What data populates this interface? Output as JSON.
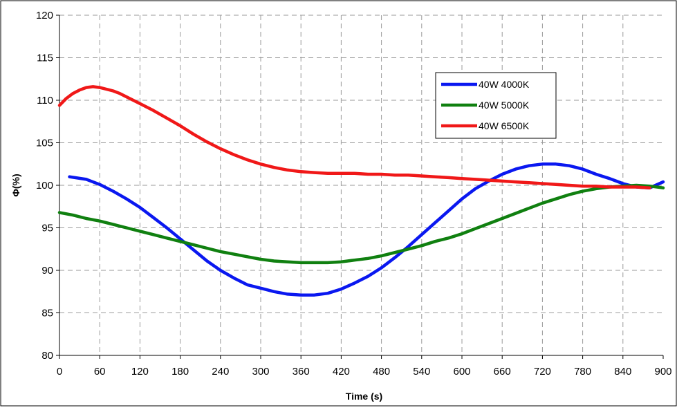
{
  "chart_data": {
    "type": "line",
    "title": "",
    "xlabel": "Time (s)",
    "ylabel": "Φ(%)",
    "xlim": [
      0,
      900
    ],
    "ylim": [
      80,
      120
    ],
    "x_ticks": [
      0,
      60,
      120,
      180,
      240,
      300,
      360,
      420,
      480,
      540,
      600,
      660,
      720,
      780,
      840,
      900
    ],
    "y_ticks": [
      80,
      85,
      90,
      95,
      100,
      105,
      110,
      115,
      120
    ],
    "grid": true,
    "legend_position": "top-right",
    "series": [
      {
        "name": "40W 4000K",
        "color": "#0a18f0",
        "x": [
          15,
          40,
          60,
          80,
          100,
          120,
          140,
          160,
          180,
          200,
          220,
          240,
          260,
          280,
          300,
          320,
          340,
          360,
          380,
          400,
          420,
          440,
          460,
          480,
          500,
          520,
          540,
          560,
          580,
          600,
          620,
          640,
          660,
          680,
          700,
          720,
          740,
          760,
          780,
          800,
          820,
          840,
          860,
          880,
          900
        ],
        "y": [
          101.0,
          100.7,
          100.1,
          99.3,
          98.4,
          97.4,
          96.2,
          95.0,
          93.7,
          92.4,
          91.1,
          90.0,
          89.1,
          88.3,
          87.9,
          87.5,
          87.2,
          87.1,
          87.1,
          87.3,
          87.8,
          88.5,
          89.3,
          90.3,
          91.5,
          92.8,
          94.2,
          95.6,
          97.0,
          98.4,
          99.6,
          100.5,
          101.3,
          101.9,
          102.3,
          102.5,
          102.5,
          102.3,
          101.9,
          101.3,
          100.8,
          100.2,
          99.8,
          99.7,
          100.4
        ]
      },
      {
        "name": "40W 5000K",
        "color": "#108010",
        "x": [
          0,
          20,
          40,
          60,
          80,
          100,
          120,
          140,
          160,
          180,
          200,
          220,
          240,
          260,
          280,
          300,
          320,
          340,
          360,
          380,
          400,
          420,
          440,
          460,
          480,
          500,
          520,
          540,
          560,
          580,
          600,
          620,
          640,
          660,
          680,
          700,
          720,
          740,
          760,
          780,
          800,
          820,
          840,
          860,
          880,
          900
        ],
        "y": [
          96.8,
          96.5,
          96.1,
          95.8,
          95.4,
          95.0,
          94.6,
          94.2,
          93.8,
          93.4,
          93.0,
          92.6,
          92.2,
          91.9,
          91.6,
          91.3,
          91.1,
          91.0,
          90.9,
          90.9,
          90.9,
          91.0,
          91.2,
          91.4,
          91.7,
          92.1,
          92.5,
          92.9,
          93.4,
          93.8,
          94.3,
          94.9,
          95.5,
          96.1,
          96.7,
          97.3,
          97.9,
          98.4,
          98.9,
          99.3,
          99.6,
          99.8,
          99.9,
          100.0,
          99.9,
          99.7
        ]
      },
      {
        "name": "40W 6500K",
        "color": "#f01818",
        "x": [
          0,
          10,
          20,
          30,
          40,
          50,
          60,
          70,
          80,
          90,
          100,
          110,
          120,
          140,
          160,
          180,
          200,
          220,
          240,
          260,
          280,
          300,
          320,
          340,
          360,
          380,
          400,
          420,
          440,
          460,
          480,
          500,
          520,
          540,
          560,
          580,
          600,
          620,
          640,
          660,
          680,
          700,
          720,
          740,
          760,
          780,
          800,
          820,
          840,
          860,
          880
        ],
        "y": [
          109.4,
          110.2,
          110.8,
          111.2,
          111.5,
          111.6,
          111.5,
          111.3,
          111.1,
          110.8,
          110.4,
          110.0,
          109.6,
          108.8,
          107.9,
          107.0,
          106.0,
          105.1,
          104.3,
          103.6,
          103.0,
          102.5,
          102.1,
          101.8,
          101.6,
          101.5,
          101.4,
          101.4,
          101.4,
          101.3,
          101.3,
          101.2,
          101.2,
          101.1,
          101.0,
          100.9,
          100.8,
          100.7,
          100.6,
          100.5,
          100.4,
          100.3,
          100.2,
          100.1,
          100.0,
          99.9,
          99.9,
          99.8,
          99.8,
          99.8,
          99.7
        ]
      }
    ]
  }
}
